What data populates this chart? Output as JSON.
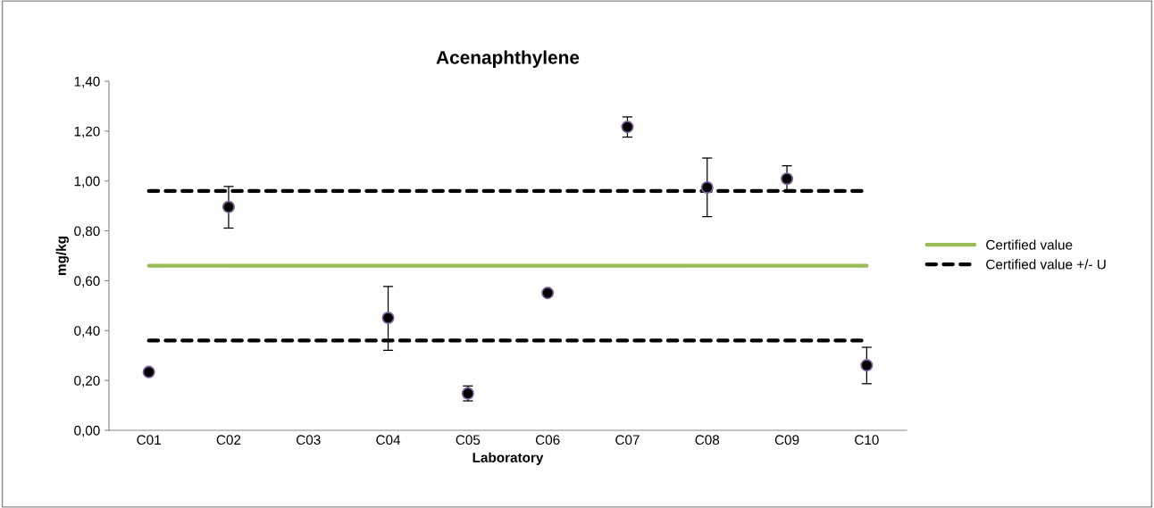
{
  "chart_data": {
    "type": "scatter",
    "title": "Acenaphthylene",
    "xlabel": "Laboratory",
    "ylabel": "mg/kg",
    "categories": [
      "C01",
      "C02",
      "C03",
      "C04",
      "C05",
      "C06",
      "C07",
      "C08",
      "C09",
      "C10"
    ],
    "series": [
      {
        "color": "#000000",
        "values": [
          0.234,
          0.896,
          null,
          0.451,
          0.148,
          0.551,
          1.217,
          0.974,
          1.009,
          0.261
        ],
        "errors": [
          null,
          [
            0.811,
            0.978
          ],
          null,
          [
            0.321,
            0.577
          ],
          [
            0.118,
            0.178
          ],
          null,
          [
            1.176,
            1.257
          ],
          [
            0.857,
            1.092
          ],
          [
            0.96,
            1.061
          ],
          [
            0.187,
            0.333
          ]
        ],
        "marker": "circle"
      },
      {
        "type": "line",
        "name": "Certified value",
        "color": "#9bbb59",
        "values": [
          0.66,
          0.66,
          0.66,
          0.66,
          0.66,
          0.66,
          0.66,
          0.66,
          0.66,
          0.66
        ],
        "line_style": "solid",
        "marker": "none"
      },
      {
        "type": "line",
        "name": "Certified value +/- U",
        "color": "#000000",
        "values": [
          0.96,
          0.96,
          0.96,
          0.96,
          0.96,
          0.96,
          0.96,
          0.96,
          0.96,
          0.96
        ],
        "line_style": "dashed",
        "marker": "none"
      },
      {
        "type": "line",
        "color": "#000000",
        "values": [
          0.36,
          0.36,
          0.36,
          0.36,
          0.36,
          0.36,
          0.36,
          0.36,
          0.36,
          0.36
        ],
        "line_style": "dashed",
        "marker": "none"
      }
    ],
    "ylim": [
      0,
      1.4
    ],
    "yticks": [
      {
        "value": 0,
        "label": "0,00"
      },
      {
        "value": 0.2,
        "label": "0,20"
      },
      {
        "value": 0.4,
        "label": "0,40"
      },
      {
        "value": 0.6,
        "label": "0,60"
      },
      {
        "value": 0.8,
        "label": "0,80"
      },
      {
        "value": 1.0,
        "label": "1,00"
      },
      {
        "value": 1.2,
        "label": "1,20"
      },
      {
        "value": 1.4,
        "label": "1,40"
      }
    ],
    "grid": false,
    "legend": "right"
  }
}
